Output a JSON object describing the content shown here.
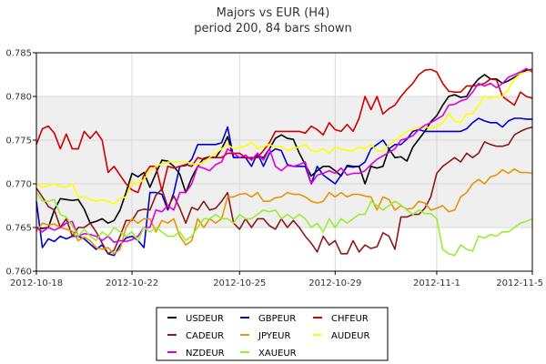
{
  "chart_data": {
    "type": "line",
    "title": "Majors vs EUR (H4)",
    "subtitle": "period 200, 84 bars shown",
    "xlabel": "",
    "ylabel": "",
    "ylim": [
      0.76,
      0.785
    ],
    "yticks": [
      "0.760",
      "0.765",
      "0.770",
      "0.775",
      "0.780",
      "0.785"
    ],
    "xlim": [
      0,
      83
    ],
    "xticks": [
      {
        "label": "2012-10-18",
        "index": 0
      },
      {
        "label": "2012-10-22",
        "index": 16
      },
      {
        "label": "2012-10-25",
        "index": 34
      },
      {
        "label": "2012-10-29",
        "index": 50
      },
      {
        "label": "2012-11-1",
        "index": 67
      },
      {
        "label": "2012-11-5",
        "index": 83
      }
    ],
    "bands": [
      [
        0.77,
        0.775
      ],
      [
        0.775,
        0.78
      ],
      [
        0.765,
        0.77
      ]
    ],
    "grid": true,
    "legend_position": "bottom",
    "series": [
      {
        "name": "USDEUR",
        "color": "#000000",
        "values": [
          0.765,
          0.7649,
          0.765,
          0.767,
          0.7683,
          0.7682,
          0.7681,
          0.7682,
          0.7671,
          0.7655,
          0.7657,
          0.766,
          0.7655,
          0.7658,
          0.767,
          0.769,
          0.7712,
          0.7708,
          0.7713,
          0.7696,
          0.7712,
          0.7727,
          0.7726,
          0.772,
          0.7711,
          0.769,
          0.7707,
          0.772,
          0.7729,
          0.7731,
          0.773,
          0.774,
          0.7754,
          0.773,
          0.773,
          0.773,
          0.7729,
          0.7732,
          0.773,
          0.774,
          0.7752,
          0.7756,
          0.7752,
          0.7751,
          0.7735,
          0.7722,
          0.7709,
          0.7715,
          0.772,
          0.772,
          0.7715,
          0.7709,
          0.7721,
          0.772,
          0.772,
          0.77,
          0.772,
          0.7718,
          0.772,
          0.774,
          0.773,
          0.7731,
          0.7726,
          0.7742,
          0.7751,
          0.776,
          0.7771,
          0.7778,
          0.779,
          0.78,
          0.7802,
          0.7799,
          0.78,
          0.7812,
          0.782,
          0.7825,
          0.782,
          0.782,
          0.7815,
          0.7818,
          0.7822,
          0.7826,
          0.783,
          0.7831
        ]
      },
      {
        "name": "GBPEUR",
        "color": "#0000cc",
        "values": [
          0.768,
          0.7627,
          0.7637,
          0.7634,
          0.764,
          0.7637,
          0.764,
          0.764,
          0.7637,
          0.7631,
          0.7625,
          0.763,
          0.762,
          0.7618,
          0.763,
          0.7638,
          0.764,
          0.7635,
          0.7627,
          0.769,
          0.769,
          0.7688,
          0.767,
          0.769,
          0.772,
          0.7721,
          0.7728,
          0.7745,
          0.7745,
          0.7745,
          0.7745,
          0.7747,
          0.7765,
          0.773,
          0.773,
          0.773,
          0.772,
          0.7735,
          0.772,
          0.7735,
          0.774,
          0.7738,
          0.7722,
          0.772,
          0.772,
          0.772,
          0.77,
          0.772,
          0.771,
          0.7705,
          0.77,
          0.771,
          0.772,
          0.7719,
          0.772,
          0.7725,
          0.774,
          0.7745,
          0.775,
          0.774,
          0.7745,
          0.7745,
          0.7751,
          0.776,
          0.7762,
          0.776,
          0.776,
          0.776,
          0.776,
          0.776,
          0.776,
          0.776,
          0.7763,
          0.777,
          0.7775,
          0.7772,
          0.777,
          0.777,
          0.7765,
          0.7772,
          0.7775,
          0.7775,
          0.7774,
          0.7774
        ]
      },
      {
        "name": "CHFEUR",
        "color": "#cc0000",
        "values": [
          0.7745,
          0.7763,
          0.7766,
          0.7758,
          0.774,
          0.7757,
          0.774,
          0.774,
          0.776,
          0.7752,
          0.776,
          0.775,
          0.7713,
          0.772,
          0.771,
          0.77,
          0.7693,
          0.769,
          0.771,
          0.772,
          0.772,
          0.7692,
          0.772,
          0.7718,
          0.772,
          0.7722,
          0.772,
          0.773,
          0.7728,
          0.773,
          0.773,
          0.773,
          0.7735,
          0.7735,
          0.7735,
          0.773,
          0.773,
          0.773,
          0.7738,
          0.7747,
          0.776,
          0.776,
          0.776,
          0.776,
          0.776,
          0.7758,
          0.7766,
          0.7762,
          0.7756,
          0.777,
          0.7762,
          0.776,
          0.7768,
          0.776,
          0.7775,
          0.78,
          0.7785,
          0.78,
          0.778,
          0.7786,
          0.779,
          0.78,
          0.7808,
          0.7815,
          0.7825,
          0.783,
          0.7831,
          0.7828,
          0.7815,
          0.7806,
          0.7805,
          0.7805,
          0.7812,
          0.7812,
          0.7813,
          0.7815,
          0.782,
          0.7819,
          0.78,
          0.7795,
          0.779,
          0.7805,
          0.78,
          0.7798
        ]
      },
      {
        "name": "CADEUR",
        "color": "#8b1a1a",
        "values": [
          0.7695,
          0.7685,
          0.7674,
          0.767,
          0.765,
          0.766,
          0.764,
          0.765,
          0.765,
          0.7655,
          0.7645,
          0.7632,
          0.762,
          0.7624,
          0.764,
          0.7658,
          0.7658,
          0.7669,
          0.7671,
          0.767,
          0.7687,
          0.7694,
          0.7673,
          0.7686,
          0.7672,
          0.7655,
          0.7673,
          0.767,
          0.768,
          0.767,
          0.7672,
          0.768,
          0.769,
          0.7655,
          0.7648,
          0.766,
          0.765,
          0.766,
          0.766,
          0.7652,
          0.7648,
          0.766,
          0.765,
          0.7658,
          0.765,
          0.764,
          0.7632,
          0.7622,
          0.764,
          0.763,
          0.7635,
          0.762,
          0.762,
          0.7635,
          0.7622,
          0.763,
          0.7626,
          0.7628,
          0.7644,
          0.764,
          0.7625,
          0.7662,
          0.7662,
          0.7665,
          0.7665,
          0.7672,
          0.7685,
          0.7712,
          0.772,
          0.7725,
          0.773,
          0.7725,
          0.7735,
          0.773,
          0.7735,
          0.7748,
          0.7745,
          0.7743,
          0.7743,
          0.7745,
          0.7756,
          0.776,
          0.7763,
          0.7765
        ]
      },
      {
        "name": "JPYEUR",
        "color": "#e69500",
        "values": [
          0.7645,
          0.7655,
          0.7653,
          0.7654,
          0.765,
          0.7648,
          0.7646,
          0.7635,
          0.7639,
          0.7635,
          0.7627,
          0.7625,
          0.7627,
          0.762,
          0.7625,
          0.765,
          0.766,
          0.7655,
          0.766,
          0.766,
          0.7645,
          0.7658,
          0.7655,
          0.766,
          0.764,
          0.763,
          0.7635,
          0.766,
          0.765,
          0.766,
          0.7655,
          0.766,
          0.7685,
          0.7685,
          0.7688,
          0.7689,
          0.7685,
          0.769,
          0.768,
          0.768,
          0.7684,
          0.7685,
          0.769,
          0.7688,
          0.7688,
          0.7685,
          0.768,
          0.7678,
          0.768,
          0.769,
          0.7685,
          0.769,
          0.7685,
          0.7688,
          0.7688,
          0.7686,
          0.7685,
          0.767,
          0.7685,
          0.7682,
          0.767,
          0.7675,
          0.7671,
          0.7672,
          0.768,
          0.7678,
          0.767,
          0.7672,
          0.7675,
          0.7668,
          0.767,
          0.7685,
          0.769,
          0.77,
          0.7705,
          0.77,
          0.7708,
          0.771,
          0.7716,
          0.7712,
          0.7717,
          0.7713,
          0.7713,
          0.7712
        ]
      },
      {
        "name": "AUDEUR",
        "color": "#ffff00",
        "values": [
          0.77,
          0.7696,
          0.7698,
          0.77,
          0.7697,
          0.7696,
          0.77,
          0.7685,
          0.7685,
          0.7682,
          0.768,
          0.7682,
          0.768,
          0.7677,
          0.7683,
          0.7685,
          0.7702,
          0.77,
          0.7705,
          0.7715,
          0.772,
          0.7723,
          0.7725,
          0.7725,
          0.7725,
          0.7725,
          0.7723,
          0.7722,
          0.7725,
          0.773,
          0.7735,
          0.774,
          0.7745,
          0.774,
          0.7742,
          0.7743,
          0.7748,
          0.774,
          0.7743,
          0.7745,
          0.7742,
          0.7743,
          0.7738,
          0.7741,
          0.7742,
          0.7745,
          0.7738,
          0.7737,
          0.774,
          0.7735,
          0.7742,
          0.774,
          0.7738,
          0.7738,
          0.7742,
          0.774,
          0.7745,
          0.7738,
          0.7737,
          0.7745,
          0.775,
          0.7755,
          0.776,
          0.7762,
          0.7765,
          0.7765,
          0.7764,
          0.7765,
          0.777,
          0.778,
          0.7772,
          0.777,
          0.778,
          0.778,
          0.779,
          0.78,
          0.7798,
          0.78,
          0.78,
          0.7808,
          0.782,
          0.7826,
          0.7828,
          0.783
        ]
      },
      {
        "name": "NZDEUR",
        "color": "#dd00dd",
        "values": [
          0.765,
          0.7645,
          0.765,
          0.7647,
          0.765,
          0.7655,
          0.7657,
          0.764,
          0.7643,
          0.7642,
          0.764,
          0.7635,
          0.764,
          0.7633,
          0.7635,
          0.7634,
          0.7636,
          0.764,
          0.765,
          0.765,
          0.767,
          0.7668,
          0.7675,
          0.767,
          0.769,
          0.769,
          0.77,
          0.772,
          0.7718,
          0.7715,
          0.7722,
          0.7725,
          0.774,
          0.7735,
          0.773,
          0.7733,
          0.7727,
          0.7735,
          0.7727,
          0.774,
          0.772,
          0.7715,
          0.7721,
          0.772,
          0.7722,
          0.7725,
          0.77,
          0.771,
          0.7712,
          0.7715,
          0.7712,
          0.7718,
          0.771,
          0.7712,
          0.7712,
          0.7715,
          0.7722,
          0.7728,
          0.7732,
          0.7736,
          0.774,
          0.775,
          0.7752,
          0.7755,
          0.7762,
          0.7767,
          0.777,
          0.7774,
          0.7778,
          0.779,
          0.7791,
          0.7795,
          0.7797,
          0.7805,
          0.7815,
          0.7812,
          0.7815,
          0.781,
          0.7815,
          0.7822,
          0.7825,
          0.7828,
          0.7832,
          0.7828
        ]
      },
      {
        "name": "XAUEUR",
        "color": "#99ee33",
        "values": [
          0.769,
          0.768,
          0.768,
          0.7682,
          0.7665,
          0.7662,
          0.7652,
          0.764,
          0.7648,
          0.764,
          0.7635,
          0.7645,
          0.764,
          0.765,
          0.7645,
          0.764,
          0.7645,
          0.7635,
          0.765,
          0.7645,
          0.765,
          0.7645,
          0.764,
          0.764,
          0.7645,
          0.7635,
          0.764,
          0.765,
          0.766,
          0.766,
          0.7665,
          0.766,
          0.766,
          0.7655,
          0.7665,
          0.766,
          0.766,
          0.7665,
          0.767,
          0.7668,
          0.767,
          0.766,
          0.7665,
          0.766,
          0.7665,
          0.766,
          0.765,
          0.7655,
          0.7645,
          0.766,
          0.765,
          0.766,
          0.7655,
          0.766,
          0.7665,
          0.7665,
          0.768,
          0.7675,
          0.767,
          0.7675,
          0.768,
          0.7676,
          0.767,
          0.7665,
          0.767,
          0.7666,
          0.7666,
          0.766,
          0.7625,
          0.762,
          0.7618,
          0.763,
          0.7625,
          0.7623,
          0.764,
          0.7638,
          0.7642,
          0.764,
          0.7645,
          0.7645,
          0.765,
          0.7655,
          0.7657,
          0.766
        ]
      }
    ]
  }
}
